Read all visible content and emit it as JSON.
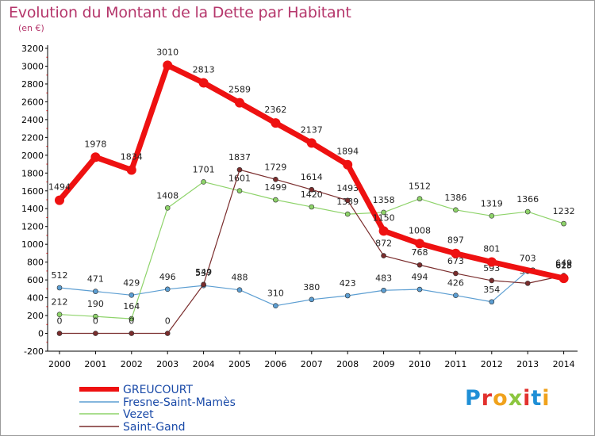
{
  "title": "Evolution du Montant de la Dette par Habitant",
  "unit": "(en €)",
  "brand": {
    "text": "Proxiti",
    "colors": [
      "#1f8fd6",
      "#e2312e",
      "#f0a21c",
      "#8cc63f",
      "#e2312e",
      "#1f8fd6",
      "#f0a21c"
    ]
  },
  "chart_data": {
    "type": "line",
    "title": "Evolution du Montant de la Dette par Habitant",
    "ylabel": "(en €)",
    "xlabel": "",
    "ylim": [
      -200,
      3200
    ],
    "ytick_step": 200,
    "grid": false,
    "legend_position": "bottom-left",
    "x": [
      "2000",
      "2001",
      "2002",
      "2003",
      "2004",
      "2005",
      "2006",
      "2007",
      "2008",
      "2009",
      "2010",
      "2011",
      "2012",
      "2013",
      "2014"
    ],
    "series": [
      {
        "name": "Fresne-Saint-Mamès",
        "color": "#5c9ed2",
        "width": 1.2,
        "marker": 3,
        "values": [
          512,
          471,
          429,
          496,
          537,
          488,
          310,
          380,
          423,
          483,
          494,
          426,
          354,
          703,
          625
        ],
        "labels": [
          "512",
          "471",
          "429",
          "496",
          "537",
          "488",
          "310",
          "380",
          "423",
          "483",
          "494",
          "426",
          "354",
          "703",
          "625"
        ]
      },
      {
        "name": "Vezet",
        "color": "#8ed36a",
        "width": 1.2,
        "marker": 3,
        "values": [
          212,
          190,
          164,
          1408,
          1701,
          1601,
          1499,
          1420,
          1339,
          1358,
          1512,
          1386,
          1319,
          1366,
          1232
        ],
        "labels": [
          "212",
          "190",
          "164",
          "1408",
          "1701",
          "1601",
          "1499",
          "1420",
          "1339",
          "1358",
          "1512",
          "1386",
          "1319",
          "1366",
          "1232"
        ]
      },
      {
        "name": "Saint-Gand",
        "color": "#7a2d2d",
        "width": 1.2,
        "marker": 3,
        "values": [
          0,
          0,
          0,
          0,
          549,
          1837,
          1729,
          1614,
          1493,
          872,
          768,
          673,
          593,
          562,
          649
        ],
        "labels": [
          "0",
          "0",
          "0",
          "0",
          "549",
          "1837",
          "1729",
          "1614",
          "1493",
          "872",
          "768",
          "673",
          "593",
          "562",
          "649"
        ]
      },
      {
        "name": "GREUCOURT",
        "color": "#ee1111",
        "width": 7,
        "marker": 6,
        "values": [
          1494,
          1978,
          1834,
          3010,
          2813,
          2589,
          2362,
          2137,
          1894,
          1150,
          1008,
          897,
          801,
          null,
          618
        ],
        "labels": [
          "1494",
          "1978",
          "1834",
          "3010",
          "2813",
          "2589",
          "2362",
          "2137",
          "1894",
          "1150",
          "1008",
          "897",
          "801",
          "",
          "618"
        ]
      }
    ],
    "legend": [
      "GREUCOURT",
      "Fresne-Saint-Mamès",
      "Vezet",
      "Saint-Gand"
    ]
  }
}
